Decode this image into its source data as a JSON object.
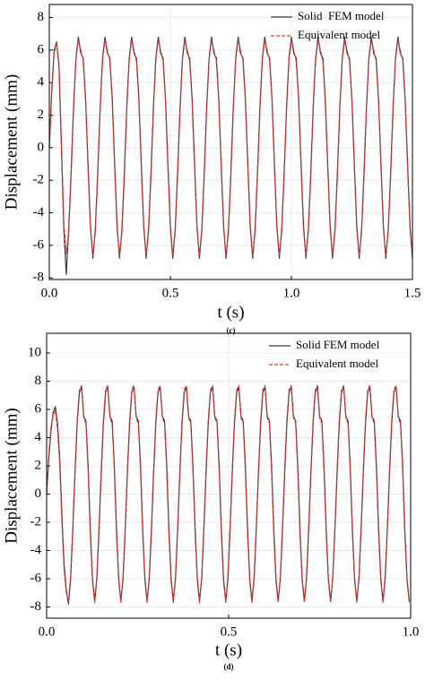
{
  "chart_data": [
    {
      "type": "line",
      "ylabel": "Displacement (mm)",
      "xlabel": "t (s)",
      "caption": "(c)",
      "xlim": [
        0,
        1.5
      ],
      "ylim": [
        -8.1,
        8.8
      ],
      "xticks": [
        {
          "value": 0,
          "label": "0.0"
        },
        0.5,
        {
          "value": 1,
          "label": "1.0"
        },
        1.5
      ],
      "yticks": [
        -8,
        -6,
        -4,
        -2,
        0,
        2,
        4,
        6,
        8
      ],
      "grid": true,
      "legend": "upper right",
      "x": [
        0,
        0.01,
        0.02,
        0.03,
        0.04,
        0.05,
        0.06,
        0.07,
        0.08,
        0.09,
        0.1,
        0.11,
        0.12,
        0.13,
        0.14,
        0.15,
        0.16,
        0.17,
        0.18,
        0.19,
        0.2,
        0.21,
        0.22,
        0.23,
        0.24,
        0.25,
        0.26,
        0.27,
        0.28,
        0.29,
        0.3,
        0.31,
        0.32,
        0.33,
        0.34,
        0.35,
        0.36,
        0.37,
        0.38,
        0.39,
        0.4,
        0.41,
        0.42,
        0.43,
        0.44,
        0.45,
        0.46,
        0.47,
        0.48,
        0.49,
        0.5,
        0.51,
        0.52,
        0.53,
        0.54,
        0.55,
        0.56,
        0.57,
        0.58,
        0.59,
        0.6,
        0.61,
        0.62,
        0.63,
        0.64,
        0.65,
        0.66,
        0.67,
        0.68,
        0.69,
        0.7,
        0.71,
        0.72,
        0.73,
        0.74,
        0.75,
        0.76,
        0.77,
        0.78,
        0.79,
        0.8,
        0.81,
        0.82,
        0.83,
        0.84,
        0.85,
        0.86,
        0.87,
        0.88,
        0.89,
        0.9,
        0.91,
        0.92,
        0.93,
        0.94,
        0.95,
        0.96,
        0.97,
        0.98,
        0.99,
        1,
        1.01,
        1.02,
        1.03,
        1.04,
        1.05,
        1.06,
        1.07,
        1.08,
        1.09,
        1.1,
        1.11,
        1.12,
        1.13,
        1.14,
        1.15,
        1.16,
        1.17,
        1.18,
        1.19,
        1.2,
        1.21,
        1.22,
        1.23,
        1.24,
        1.25,
        1.26,
        1.27,
        1.28,
        1.29,
        1.3,
        1.31,
        1.32,
        1.33,
        1.34,
        1.35,
        1.36,
        1.37,
        1.38,
        1.39,
        1.4,
        1.41,
        1.42,
        1.43,
        1.44,
        1.45,
        1.46,
        1.47,
        1.48,
        1.49,
        1.5
      ],
      "series": [
        {
          "name": "Solid  FEM model",
          "color": "#3a3a3a",
          "dash": false,
          "values": [
            0,
            3.5,
            6.0,
            6.5,
            5.0,
            0.0,
            -5.0,
            -7.8,
            -5.0,
            -1.5,
            2.5,
            5.5,
            6.8,
            5.8,
            5.5,
            3.0,
            -1.0,
            -4.8,
            -6.8,
            -5.0,
            -1.5,
            2.5,
            5.5,
            6.8,
            5.8,
            5.5,
            3.0,
            -1.0,
            -4.8,
            -6.8,
            -5.0,
            -1.5,
            2.5,
            5.5,
            6.8,
            5.8,
            5.5,
            3.0,
            -1.0,
            -4.8,
            -6.8,
            -5.0,
            -1.5,
            2.5,
            5.5,
            6.8,
            5.8,
            5.5,
            3.0,
            -1.0,
            -4.8,
            -6.8,
            -5.0,
            -1.5,
            2.5,
            5.5,
            6.8,
            5.8,
            5.5,
            3.0,
            -1.0,
            -4.8,
            -6.8,
            -5.0,
            -1.5,
            2.5,
            5.5,
            6.8,
            5.8,
            5.5,
            3.0,
            -1.0,
            -4.8,
            -6.8,
            -5.0,
            -1.5,
            2.5,
            5.5,
            6.8,
            5.8,
            5.5,
            3.0,
            -1.0,
            -4.8,
            -6.8,
            -5.0,
            -1.5,
            2.5,
            5.5,
            6.8,
            5.8,
            5.5,
            3.0,
            -1.0,
            -4.8,
            -6.8,
            -5.0,
            -1.5,
            2.5,
            5.5,
            6.8,
            5.8,
            5.5,
            3.0,
            -1.0,
            -4.8,
            -6.8,
            -5.0,
            -1.5,
            2.5,
            5.5,
            6.8,
            5.8,
            5.5,
            3.0,
            -1.0,
            -4.8,
            -6.8,
            -5.0,
            -1.5,
            2.5,
            5.5,
            6.8,
            5.8,
            5.5,
            3.0,
            -1.0,
            -4.8,
            -6.8,
            -5.0,
            -1.5,
            2.5,
            5.5,
            6.8,
            5.8,
            5.5,
            3.0,
            -1.0,
            -4.8,
            -6.8,
            -5.0,
            -1.5,
            2.5,
            5.5,
            6.8,
            5.8,
            5.5,
            3.0,
            -1.0,
            -4.8,
            -6.8
          ]
        },
        {
          "name": "Equivalent model",
          "color": "#e8302a",
          "dash": true,
          "values": [
            0,
            3.3,
            5.8,
            6.4,
            5.2,
            0.4,
            -4.6,
            -6.5,
            -5.2,
            -1.8,
            2.3,
            5.4,
            6.6,
            6.0,
            5.3,
            2.8,
            -1.3,
            -5.0,
            -6.6,
            -5.2,
            -1.8,
            2.3,
            5.4,
            6.6,
            6.0,
            5.3,
            2.8,
            -1.3,
            -5.0,
            -6.6,
            -5.2,
            -1.8,
            2.3,
            5.4,
            6.6,
            6.0,
            5.3,
            2.8,
            -1.3,
            -5.0,
            -6.6,
            -5.2,
            -1.8,
            2.3,
            5.4,
            6.6,
            6.0,
            5.3,
            2.8,
            -1.3,
            -5.0,
            -6.6,
            -5.2,
            -1.8,
            2.3,
            5.4,
            6.6,
            6.0,
            5.3,
            2.8,
            -1.3,
            -5.0,
            -6.6,
            -5.2,
            -1.8,
            2.3,
            5.4,
            6.6,
            6.0,
            5.3,
            2.8,
            -1.3,
            -5.0,
            -6.6,
            -5.2,
            -1.8,
            2.3,
            5.4,
            6.6,
            6.0,
            5.3,
            2.8,
            -1.3,
            -5.0,
            -6.6,
            -5.2,
            -1.8,
            2.3,
            5.4,
            6.6,
            6.0,
            5.3,
            2.8,
            -1.3,
            -5.0,
            -6.6,
            -5.2,
            -1.8,
            2.3,
            5.4,
            6.6,
            6.0,
            5.3,
            2.8,
            -1.3,
            -5.0,
            -6.6,
            -5.2,
            -1.8,
            2.3,
            5.4,
            6.6,
            6.0,
            5.3,
            2.8,
            -1.3,
            -5.0,
            -6.6,
            -5.2,
            -1.8,
            2.3,
            5.4,
            6.6,
            6.0,
            5.3,
            2.8,
            -1.3,
            -5.0,
            -6.6,
            -5.2,
            -1.8,
            2.3,
            5.4,
            6.6,
            6.0,
            5.3,
            2.8,
            -1.3,
            -5.0,
            -6.6,
            -5.2,
            -1.8,
            2.3,
            5.4,
            6.6,
            6.0,
            5.3,
            2.8,
            -1.3,
            -5.0,
            -6.6
          ]
        }
      ]
    },
    {
      "type": "line",
      "ylabel": "Displacement (mm)",
      "xlabel": "t (s)",
      "caption": "(d)",
      "xlim": [
        0,
        1
      ],
      "ylim": [
        -8.8,
        11.4
      ],
      "xticks": [
        {
          "value": 0,
          "label": "0.0"
        },
        0.5,
        {
          "value": 1,
          "label": "1.0"
        }
      ],
      "yticks": [
        -8,
        -6,
        -4,
        -2,
        0,
        2,
        4,
        6,
        8,
        10
      ],
      "grid": true,
      "legend": "upper right",
      "x": [
        0,
        0.006,
        0.012,
        0.018,
        0.024,
        0.03,
        0.036,
        0.042,
        0.048,
        0.054,
        0.06,
        0.066,
        0.072,
        0.078,
        0.084,
        0.09,
        0.096,
        0.102,
        0.108,
        0.114,
        0.12,
        0.126,
        0.132,
        0.138,
        0.144,
        0.15,
        0.156,
        0.162,
        0.168,
        0.174,
        0.18,
        0.186,
        0.192,
        0.198,
        0.204,
        0.21,
        0.216,
        0.222,
        0.228,
        0.234,
        0.24,
        0.246,
        0.252,
        0.258,
        0.264,
        0.27,
        0.276,
        0.282,
        0.288,
        0.294,
        0.3,
        0.306,
        0.312,
        0.318,
        0.324,
        0.33,
        0.336,
        0.342,
        0.348,
        0.354,
        0.36,
        0.366,
        0.372,
        0.378,
        0.384,
        0.39,
        0.396,
        0.402,
        0.408,
        0.414,
        0.42,
        0.426,
        0.432,
        0.438,
        0.444,
        0.45,
        0.456,
        0.462,
        0.468,
        0.474,
        0.48,
        0.486,
        0.492,
        0.498,
        0.504,
        0.51,
        0.516,
        0.522,
        0.528,
        0.534,
        0.54,
        0.546,
        0.552,
        0.558,
        0.564,
        0.57,
        0.576,
        0.582,
        0.588,
        0.594,
        0.6,
        0.606,
        0.612,
        0.618,
        0.624,
        0.63,
        0.636,
        0.642,
        0.648,
        0.654,
        0.66,
        0.666,
        0.672,
        0.678,
        0.684,
        0.69,
        0.696,
        0.702,
        0.708,
        0.714,
        0.72,
        0.726,
        0.732,
        0.738,
        0.744,
        0.75,
        0.756,
        0.762,
        0.768,
        0.774,
        0.78,
        0.786,
        0.792,
        0.798,
        0.804,
        0.81,
        0.816,
        0.822,
        0.828,
        0.834,
        0.84,
        0.846,
        0.852,
        0.858,
        0.864,
        0.87,
        0.876,
        0.882,
        0.888,
        0.894,
        0.9,
        0.906,
        0.912,
        0.918,
        0.924,
        0.93,
        0.936,
        0.942,
        0.948,
        0.954,
        0.96,
        0.966,
        0.972,
        0.978,
        0.984,
        0.99,
        0.996
      ],
      "series": [
        {
          "name": "Solid FEM model",
          "color": "#3a3a3a",
          "dash": false,
          "values": [
            0,
            2.5,
            4.5,
            5.8,
            6.2,
            5.0,
            2.5,
            -1.5,
            -5.0,
            -6.8,
            -7.8,
            -6.0,
            -2.5,
            1.5,
            5.0,
            7.2,
            7.6,
            5.5,
            5.2,
            2.0,
            -2.5,
            -6.0,
            -7.6,
            -6.0,
            -2.5,
            1.5,
            5.0,
            7.2,
            7.6,
            5.5,
            5.2,
            2.0,
            -2.5,
            -6.0,
            -7.6,
            -6.0,
            -2.5,
            1.5,
            5.0,
            7.2,
            7.6,
            5.5,
            5.2,
            2.0,
            -2.5,
            -6.0,
            -7.6,
            -6.0,
            -2.5,
            1.5,
            5.0,
            7.2,
            7.6,
            5.5,
            5.2,
            2.0,
            -2.5,
            -6.0,
            -7.6,
            -6.0,
            -2.5,
            1.5,
            5.0,
            7.2,
            7.6,
            5.5,
            5.2,
            2.0,
            -2.5,
            -6.0,
            -7.6,
            -6.0,
            -2.5,
            1.5,
            5.0,
            7.2,
            7.6,
            5.5,
            5.2,
            2.0,
            -2.5,
            -6.0,
            -7.6,
            -6.0,
            -2.5,
            1.5,
            5.0,
            7.2,
            7.6,
            5.5,
            5.2,
            2.0,
            -2.5,
            -6.0,
            -7.6,
            -6.0,
            -2.5,
            1.5,
            5.0,
            7.2,
            7.6,
            5.5,
            5.2,
            2.0,
            -2.5,
            -6.0,
            -7.6,
            -6.0,
            -2.5,
            1.5,
            5.0,
            7.2,
            7.6,
            5.5,
            5.2,
            2.0,
            -2.5,
            -6.0,
            -7.6,
            -6.0,
            -2.5,
            1.5,
            5.0,
            7.2,
            7.6,
            5.5,
            5.2,
            2.0,
            -2.5,
            -6.0,
            -7.6,
            -6.0,
            -2.5,
            1.5,
            5.0,
            7.2,
            7.6,
            5.5,
            5.2,
            2.0,
            -2.5,
            -6.0,
            -7.6,
            -6.0,
            -2.5,
            1.5,
            5.0,
            7.2,
            7.6,
            5.5,
            5.2,
            2.0,
            -2.5,
            -6.0,
            -7.6,
            -6.0,
            -2.5,
            1.5,
            5.0,
            7.2,
            7.6,
            5.5,
            5.2,
            2.0,
            -2.5,
            -6.0,
            -7.6
          ]
        },
        {
          "name": "Equivalent model",
          "color": "#e8302a",
          "dash": true,
          "values": [
            0,
            2.8,
            4.8,
            5.6,
            5.9,
            4.6,
            2.0,
            -2.0,
            -5.4,
            -7.0,
            -7.6,
            -5.8,
            -2.2,
            1.8,
            5.3,
            7.4,
            7.7,
            5.4,
            5.0,
            1.6,
            -2.9,
            -6.2,
            -7.7,
            -5.8,
            -2.2,
            1.8,
            5.3,
            7.4,
            7.7,
            5.4,
            5.0,
            1.6,
            -2.9,
            -6.2,
            -7.7,
            -5.8,
            -2.2,
            1.8,
            5.3,
            7.4,
            7.7,
            5.4,
            5.0,
            1.6,
            -2.9,
            -6.2,
            -7.7,
            -5.8,
            -2.2,
            1.8,
            5.3,
            7.4,
            7.7,
            5.4,
            5.0,
            1.6,
            -2.9,
            -6.2,
            -7.7,
            -5.8,
            -2.2,
            1.8,
            5.3,
            7.4,
            7.7,
            5.4,
            5.0,
            1.6,
            -2.9,
            -6.2,
            -7.7,
            -5.8,
            -2.2,
            1.8,
            5.3,
            7.4,
            7.7,
            5.4,
            5.0,
            1.6,
            -2.9,
            -6.2,
            -7.7,
            -5.8,
            -2.2,
            1.8,
            5.3,
            7.4,
            7.7,
            5.4,
            5.0,
            1.6,
            -2.9,
            -6.2,
            -7.7,
            -5.8,
            -2.2,
            1.8,
            5.3,
            7.4,
            7.7,
            5.4,
            5.0,
            1.6,
            -2.9,
            -6.2,
            -7.7,
            -5.8,
            -2.2,
            1.8,
            5.3,
            7.4,
            7.7,
            5.4,
            5.0,
            1.6,
            -2.9,
            -6.2,
            -7.7,
            -5.8,
            -2.2,
            1.8,
            5.3,
            7.4,
            7.7,
            5.4,
            5.0,
            1.6,
            -2.9,
            -6.2,
            -7.7,
            -5.8,
            -2.2,
            1.8,
            5.3,
            7.4,
            7.7,
            5.4,
            5.0,
            1.6,
            -2.9,
            -6.2,
            -7.7,
            -5.8,
            -2.2,
            1.8,
            5.3,
            7.4,
            7.7,
            5.4,
            5.0,
            1.6,
            -2.9,
            -6.2,
            -7.7,
            -5.8,
            -2.2,
            1.8,
            5.3,
            7.4,
            7.7,
            5.4,
            5.0,
            1.6,
            -2.9,
            -6.2,
            -7.7
          ]
        }
      ]
    }
  ]
}
